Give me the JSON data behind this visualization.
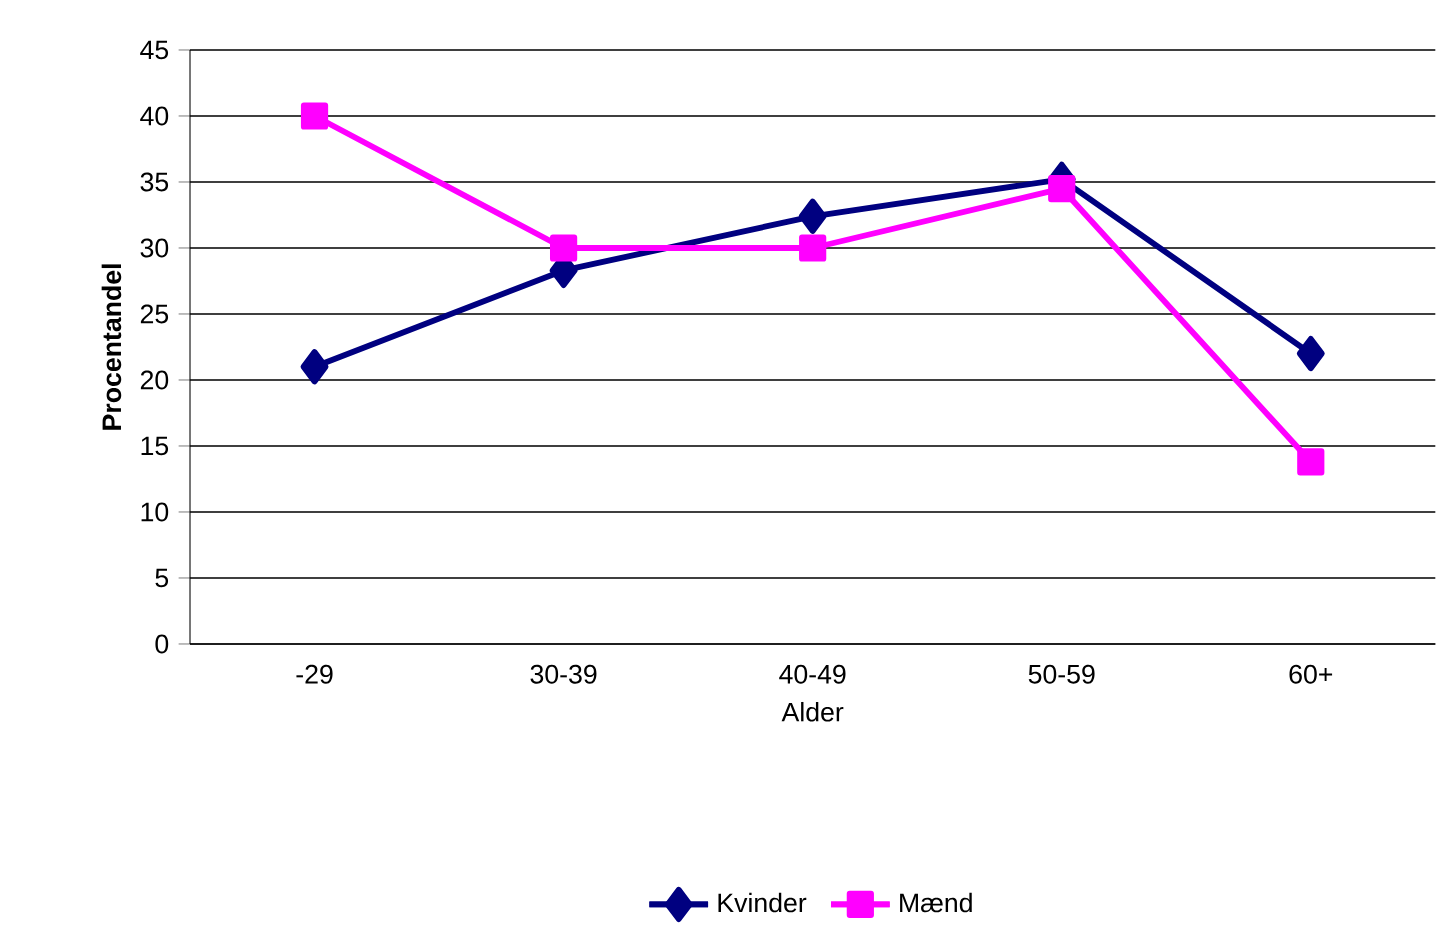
{
  "chart_data": {
    "type": "line",
    "xlabel": "Alder",
    "ylabel": "Procentandel",
    "categories": [
      "-29",
      "30-39",
      "40-49",
      "50-59",
      "60+"
    ],
    "series": [
      {
        "name": "Kvinder",
        "color": "#000080",
        "marker": "diamond",
        "values": [
          21,
          28.3,
          32.4,
          35.2,
          22
        ]
      },
      {
        "name": "Mænd",
        "color": "#ff00ff",
        "marker": "square",
        "values": [
          40,
          30,
          30,
          34.5,
          13.8
        ]
      }
    ],
    "ylim": [
      0,
      45
    ],
    "yticks": [
      0,
      5,
      10,
      15,
      20,
      25,
      30,
      35,
      40,
      45
    ],
    "grid": "y",
    "legend": "bottom",
    "line_style": "solid"
  }
}
